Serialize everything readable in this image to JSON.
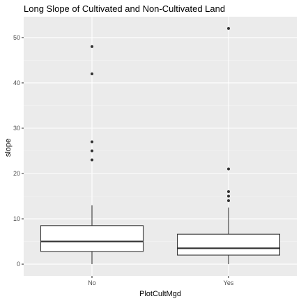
{
  "chart_data": {
    "type": "boxplot",
    "title": "Long Slope of Cultivated and Non-Cultivated Land",
    "xlabel": "PlotCultMgd",
    "ylabel": "slope",
    "categories": [
      "No",
      "Yes"
    ],
    "ylim": [
      -2.6,
      54.6
    ],
    "yticks": [
      0,
      10,
      20,
      30,
      40,
      50
    ],
    "grid": true,
    "legend": "none",
    "boxes": [
      {
        "category": "No",
        "whisker_low": 0,
        "q1": 2.8,
        "median": 5.0,
        "q3": 8.5,
        "whisker_high": 13.0,
        "outliers": [
          23,
          25,
          27,
          42,
          48
        ]
      },
      {
        "category": "Yes",
        "whisker_low": 0,
        "q1": 2.0,
        "median": 3.5,
        "q3": 6.6,
        "whisker_high": 12.5,
        "outliers": [
          14,
          15,
          16,
          21,
          52
        ]
      }
    ],
    "colors": {
      "panel": "#ebebeb",
      "grid": "#ffffff",
      "box_line": "#333333"
    }
  }
}
